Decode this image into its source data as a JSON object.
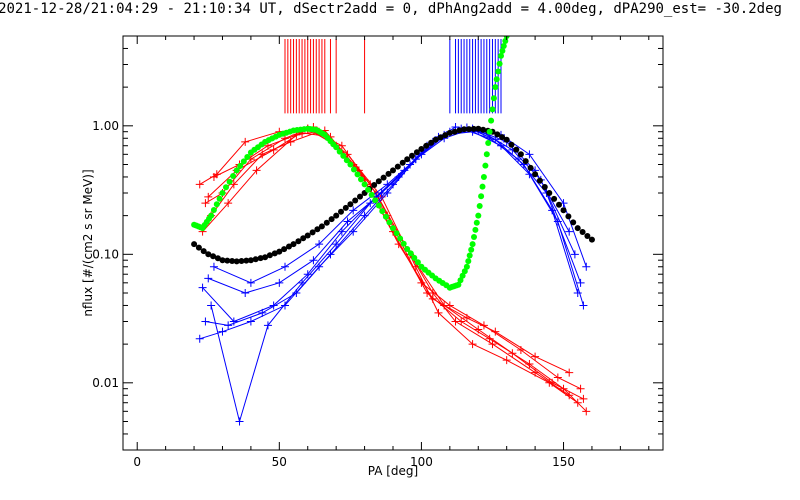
{
  "chart_data": {
    "type": "scatter",
    "title": "2021-12-28/21:04:29 - 21:10:34 UT, dSectr2add = 0, dPhAng2add = 4.00deg, dPA290_est= -30.2deg",
    "xlabel": "PA [deg]",
    "ylabel": "nflux [#/(cm2 s sr MeV)]",
    "xlim": [
      -5,
      185
    ],
    "ylim": [
      0.003,
      5
    ],
    "yscale": "log",
    "xticks": [
      "0",
      "50",
      "100",
      "150"
    ],
    "xtick_values": [
      0,
      50,
      100,
      150
    ],
    "yticks": [
      "0.01",
      "0.10",
      "1.00"
    ],
    "ytick_values": [
      0.01,
      0.1,
      1.0
    ],
    "colors": {
      "red": "#ff0000",
      "blue": "#0000ff",
      "black": "#000000",
      "green": "#00ff00"
    },
    "red_markers": [
      52,
      53,
      54,
      55,
      56,
      57,
      58,
      59,
      60,
      61,
      62,
      63,
      64,
      65,
      66,
      68,
      70,
      80
    ],
    "blue_markers": [
      110,
      112,
      113,
      114,
      115,
      116,
      117,
      118,
      119,
      120,
      121,
      122,
      123,
      124,
      125,
      126,
      127,
      128
    ],
    "red_series": [
      {
        "x": [
          22,
          28,
          38,
          50,
          60,
          70,
          82,
          96,
          104,
          112,
          125,
          140,
          152
        ],
        "y": [
          0.35,
          0.42,
          0.75,
          0.9,
          0.95,
          0.7,
          0.35,
          0.1,
          0.05,
          0.03,
          0.02,
          0.012,
          0.008
        ]
      },
      {
        "x": [
          24,
          30,
          40,
          52,
          62,
          74,
          86,
          98,
          106,
          118,
          130,
          145,
          155
        ],
        "y": [
          0.25,
          0.3,
          0.55,
          0.8,
          0.98,
          0.6,
          0.28,
          0.08,
          0.035,
          0.02,
          0.015,
          0.01,
          0.007
        ]
      },
      {
        "x": [
          26,
          34,
          44,
          54,
          64,
          76,
          88,
          100,
          110,
          122,
          135,
          148,
          156
        ],
        "y": [
          0.2,
          0.35,
          0.6,
          0.75,
          0.9,
          0.5,
          0.2,
          0.06,
          0.04,
          0.028,
          0.018,
          0.011,
          0.009
        ]
      },
      {
        "x": [
          23,
          32,
          42,
          56,
          66,
          78,
          90,
          102,
          114,
          124,
          138,
          150,
          158
        ],
        "y": [
          0.15,
          0.25,
          0.45,
          0.85,
          0.92,
          0.45,
          0.15,
          0.05,
          0.03,
          0.022,
          0.014,
          0.009,
          0.006
        ]
      },
      {
        "x": [
          27,
          36,
          46,
          58,
          68,
          80,
          92,
          104,
          116,
          126,
          140,
          152
        ],
        "y": [
          0.4,
          0.5,
          0.7,
          0.88,
          0.82,
          0.38,
          0.12,
          0.045,
          0.032,
          0.025,
          0.016,
          0.012
        ]
      },
      {
        "x": [
          25,
          35,
          48,
          60,
          72,
          84,
          96,
          108,
          120,
          132,
          146,
          157
        ],
        "y": [
          0.28,
          0.45,
          0.65,
          0.95,
          0.7,
          0.3,
          0.1,
          0.04,
          0.026,
          0.017,
          0.01,
          0.0075
        ]
      }
    ],
    "blue_series": [
      {
        "x": [
          22,
          30,
          40,
          52,
          64,
          76,
          88,
          98,
          108,
          118,
          128,
          138,
          150,
          158
        ],
        "y": [
          0.022,
          0.025,
          0.03,
          0.04,
          0.08,
          0.15,
          0.3,
          0.55,
          0.8,
          0.95,
          0.85,
          0.6,
          0.25,
          0.08
        ]
      },
      {
        "x": [
          24,
          32,
          44,
          56,
          68,
          80,
          90,
          100,
          110,
          120,
          130,
          140,
          152
        ],
        "y": [
          0.03,
          0.028,
          0.035,
          0.05,
          0.1,
          0.2,
          0.35,
          0.6,
          0.9,
          0.92,
          0.75,
          0.45,
          0.15
        ]
      },
      {
        "x": [
          26,
          36,
          46,
          58,
          70,
          82,
          92,
          102,
          112,
          122,
          132,
          142,
          154
        ],
        "y": [
          0.04,
          0.005,
          0.028,
          0.06,
          0.12,
          0.25,
          0.4,
          0.7,
          0.98,
          0.88,
          0.65,
          0.38,
          0.1
        ]
      },
      {
        "x": [
          23,
          34,
          48,
          60,
          72,
          84,
          94,
          104,
          114,
          124,
          134,
          144,
          156
        ],
        "y": [
          0.055,
          0.03,
          0.04,
          0.07,
          0.15,
          0.28,
          0.45,
          0.75,
          0.95,
          0.8,
          0.55,
          0.3,
          0.06
        ]
      },
      {
        "x": [
          25,
          38,
          50,
          62,
          74,
          86,
          96,
          106,
          116,
          126,
          136,
          146,
          155
        ],
        "y": [
          0.065,
          0.05,
          0.06,
          0.09,
          0.18,
          0.3,
          0.5,
          0.82,
          0.97,
          0.78,
          0.5,
          0.22,
          0.05
        ]
      },
      {
        "x": [
          27,
          40,
          52,
          64,
          76,
          88,
          98,
          108,
          118,
          128,
          138,
          148,
          157
        ],
        "y": [
          0.08,
          0.06,
          0.08,
          0.12,
          0.22,
          0.35,
          0.55,
          0.85,
          0.9,
          0.7,
          0.42,
          0.18,
          0.04
        ]
      }
    ],
    "black_curve": {
      "x": [
        20,
        25,
        30,
        35,
        40,
        45,
        50,
        55,
        60,
        65,
        70,
        75,
        80,
        85,
        90,
        95,
        100,
        105,
        110,
        115,
        120,
        125,
        130,
        135,
        140,
        145,
        150,
        155,
        160
      ],
      "y": [
        0.12,
        0.1,
        0.09,
        0.088,
        0.09,
        0.095,
        0.105,
        0.12,
        0.14,
        0.165,
        0.2,
        0.245,
        0.3,
        0.37,
        0.45,
        0.55,
        0.66,
        0.78,
        0.88,
        0.94,
        0.95,
        0.9,
        0.78,
        0.6,
        0.42,
        0.3,
        0.22,
        0.16,
        0.13
      ]
    },
    "green_curve": {
      "x": [
        20,
        23,
        26,
        30,
        35,
        40,
        45,
        50,
        55,
        60,
        63,
        66,
        70,
        75,
        80,
        85,
        90,
        95,
        100,
        105,
        110,
        113,
        116,
        118,
        120,
        122,
        124,
        126,
        128,
        130
      ],
      "y": [
        0.17,
        0.16,
        0.2,
        0.3,
        0.45,
        0.62,
        0.75,
        0.85,
        0.92,
        0.95,
        0.93,
        0.85,
        0.68,
        0.5,
        0.35,
        0.24,
        0.16,
        0.11,
        0.08,
        0.065,
        0.055,
        0.058,
        0.08,
        0.12,
        0.2,
        0.4,
        0.9,
        2.0,
        3.5,
        5.0
      ]
    }
  }
}
